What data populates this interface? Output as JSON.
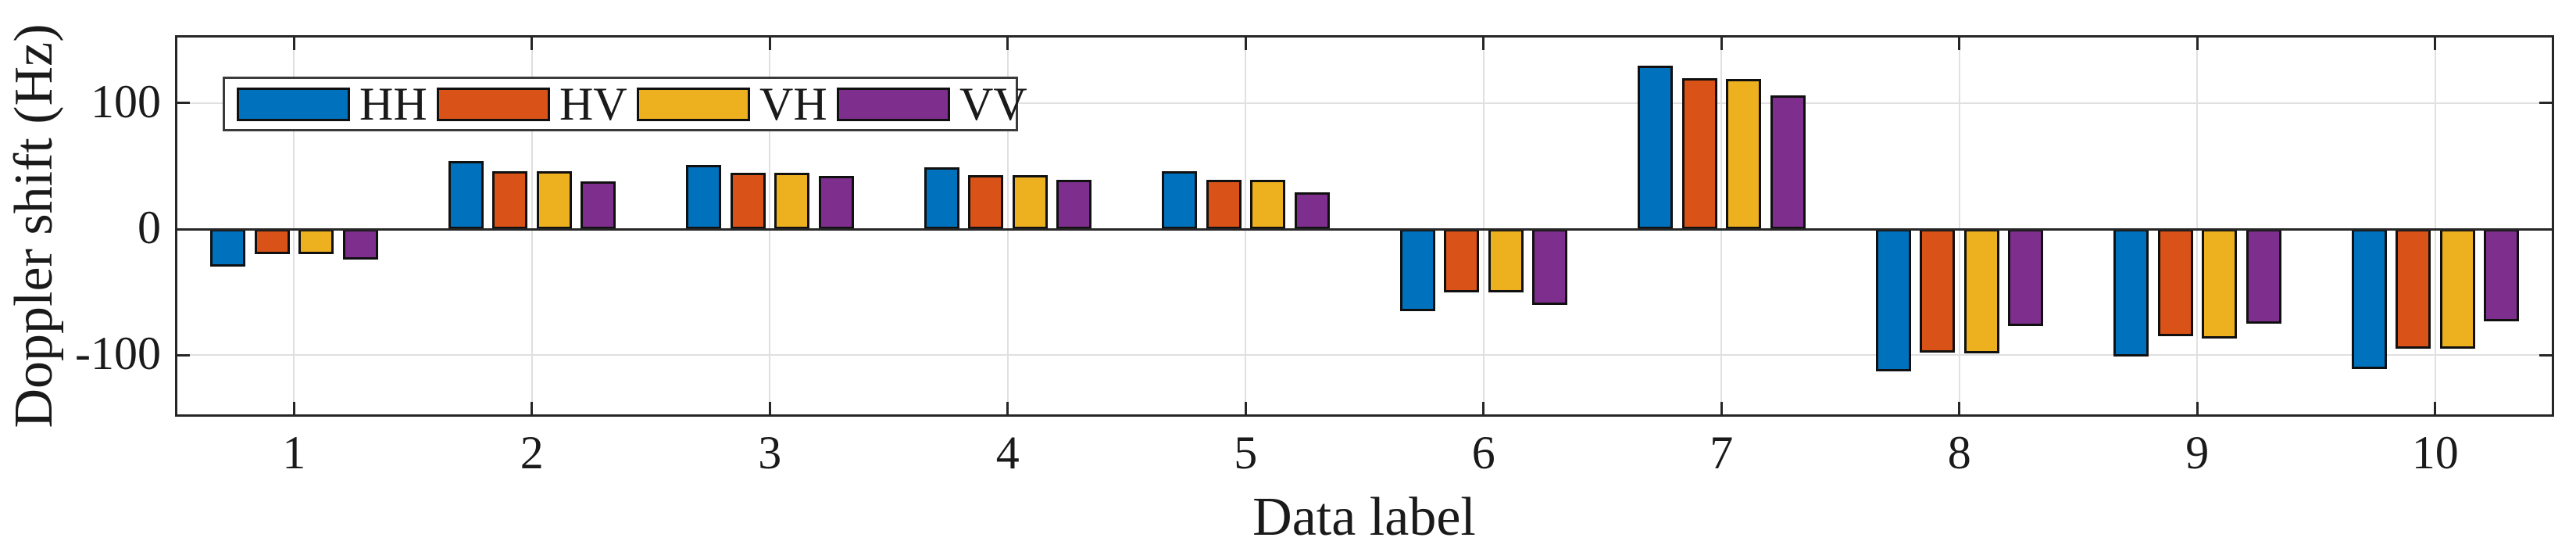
{
  "chart_data": {
    "type": "bar",
    "title": "",
    "xlabel": "Data label",
    "ylabel": "Doppler shift (Hz)",
    "categories": [
      "1",
      "2",
      "3",
      "4",
      "5",
      "6",
      "7",
      "8",
      "9",
      "10"
    ],
    "series": [
      {
        "name": "HH",
        "color": "#0072BD",
        "values": [
          -30,
          54,
          51,
          49,
          46,
          -65,
          130,
          -113,
          -101,
          -111
        ]
      },
      {
        "name": "HV",
        "color": "#D95319",
        "values": [
          -20,
          46,
          45,
          43,
          39,
          -50,
          120,
          -98,
          -85,
          -95
        ]
      },
      {
        "name": "VH",
        "color": "#EDB120",
        "values": [
          -20,
          46,
          45,
          43,
          39,
          -50,
          119,
          -99,
          -87,
          -95
        ]
      },
      {
        "name": "VV",
        "color": "#7E2F8E",
        "values": [
          -24,
          38,
          42,
          39,
          29,
          -60,
          106,
          -77,
          -75,
          -73
        ]
      }
    ],
    "ylim": [
      -149,
      154
    ],
    "yticks": [
      100,
      0,
      -100
    ],
    "ytick_labels": [
      "100",
      "0",
      "-100"
    ],
    "grid": true,
    "legend": {
      "entries": [
        "HH",
        "HV",
        "VH",
        "VV"
      ],
      "position": "top-left",
      "orientation": "horizontal"
    }
  },
  "style": {
    "axis_color": "#262626",
    "text_color": "#1a1a1a",
    "grid_color": "#e0e0e0",
    "bar_edge_color": "#101010",
    "background": "#ffffff"
  }
}
